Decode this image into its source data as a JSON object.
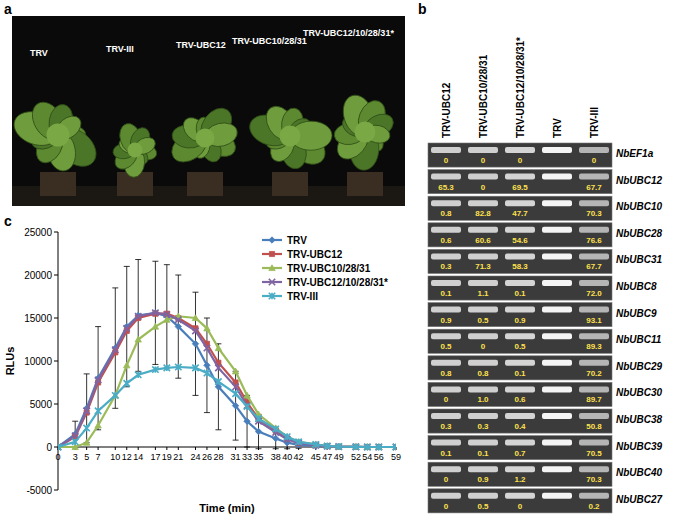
{
  "panel_labels": [
    "a",
    "b",
    "c"
  ],
  "panel_a": {
    "plants": [
      "TRV",
      "TRV-III",
      "TRV-UBC12",
      "TRV-UBC10/28/31",
      "TRV-UBC12/10/28/31*"
    ]
  },
  "panel_b": {
    "columns": [
      "TRV-UBC12",
      "TRV-UBC10/28/31",
      "TRV-UBC12/10/28/31*",
      "TRV",
      "TRV-III"
    ],
    "rows": [
      {
        "gene": "NbEF1a",
        "values": [
          "0",
          "0",
          "0",
          null,
          "0"
        ]
      },
      {
        "gene": "NbUBC12",
        "values": [
          "65.3",
          "0",
          "69.5",
          null,
          "67.7"
        ]
      },
      {
        "gene": "NbUBC10",
        "values": [
          "0.8",
          "82.8",
          "47.7",
          null,
          "70.3"
        ]
      },
      {
        "gene": "NbUBC28",
        "values": [
          "0.6",
          "60.6",
          "54.6",
          null,
          "76.6"
        ]
      },
      {
        "gene": "NbUBC31",
        "values": [
          "0.3",
          "71.3",
          "58.3",
          null,
          "67.7"
        ]
      },
      {
        "gene": "NbUBC8",
        "values": [
          "0.1",
          "1.1",
          "0.1",
          null,
          "72.0"
        ]
      },
      {
        "gene": "NbUBC9",
        "values": [
          "0.9",
          "0.5",
          "0.9",
          null,
          "93.1"
        ]
      },
      {
        "gene": "NbUBC11",
        "values": [
          "0.5",
          "0",
          "0.5",
          null,
          "89.3"
        ]
      },
      {
        "gene": "NbUBC29",
        "values": [
          "0.8",
          "0.8",
          "0.1",
          null,
          "70.2"
        ]
      },
      {
        "gene": "NbUBC30",
        "values": [
          "0",
          "1.0",
          "0.6",
          null,
          "89.7"
        ]
      },
      {
        "gene": "NbUBC38",
        "values": [
          "0.3",
          "0.3",
          "0.4",
          null,
          "50.8"
        ]
      },
      {
        "gene": "NbUBC39",
        "values": [
          "0.1",
          "0.1",
          "0.7",
          null,
          "70.5"
        ]
      },
      {
        "gene": "NbUBC40",
        "values": [
          "0",
          "0.9",
          "1.2",
          null,
          "70.3"
        ]
      },
      {
        "gene": "NbUBC27",
        "values": [
          "0",
          "0.5",
          "0",
          null,
          "0.2"
        ]
      }
    ]
  },
  "chart_data": {
    "type": "line",
    "x_label": "Time (min)",
    "y_label": "RLUs",
    "x": [
      0,
      3,
      5,
      7,
      10,
      12,
      14,
      17,
      19,
      21,
      24,
      26,
      28,
      31,
      33,
      35,
      38,
      40,
      42,
      45,
      47,
      49,
      52,
      54,
      56,
      59
    ],
    "xlim": [
      0,
      59
    ],
    "xticks": [
      0,
      3,
      5,
      7,
      10,
      12,
      14,
      17,
      19,
      21,
      24,
      26,
      28,
      31,
      33,
      35,
      38,
      40,
      42,
      45,
      47,
      49,
      52,
      54,
      56,
      59
    ],
    "ylim": [
      -5000,
      25000
    ],
    "yticks": [
      -5000,
      0,
      5000,
      10000,
      15000,
      20000,
      25000
    ],
    "grid": false,
    "legend": "upper-right",
    "series": [
      {
        "name": "TRV",
        "color": "#4a7ebb",
        "marker": "diamond",
        "values": [
          0,
          1500,
          4500,
          8000,
          11500,
          14000,
          15300,
          15600,
          15200,
          14000,
          12000,
          9500,
          7000,
          4800,
          3000,
          1800,
          1000,
          500,
          250,
          120,
          60,
          30,
          10,
          0,
          0,
          0
        ],
        "errors": [
          0,
          1500,
          4000,
          6000,
          7000,
          7000,
          6500,
          6000,
          6000,
          6000,
          6000,
          5500,
          5000,
          4000,
          3000,
          2000,
          1200,
          700,
          400,
          200,
          100,
          50,
          20,
          0,
          0,
          0
        ]
      },
      {
        "name": "TRV-UBC12",
        "color": "#c0504d",
        "marker": "square",
        "values": [
          0,
          1200,
          4000,
          7500,
          11000,
          13500,
          15000,
          15500,
          15500,
          15000,
          13800,
          12000,
          9800,
          7500,
          5200,
          3300,
          1900,
          1000,
          500,
          250,
          100,
          50,
          20,
          0,
          0,
          0
        ]
      },
      {
        "name": "TRV-UBC10/28/31",
        "color": "#9bbb59",
        "marker": "triangle",
        "values": [
          0,
          0,
          500,
          2500,
          6000,
          9500,
          12500,
          14000,
          14800,
          15200,
          15000,
          13800,
          11500,
          8800,
          6000,
          3800,
          2200,
          1200,
          600,
          300,
          120,
          50,
          20,
          0,
          0,
          0
        ]
      },
      {
        "name": "TRV-UBC12/10/28/31*",
        "color": "#8064a2",
        "marker": "x",
        "values": [
          0,
          1300,
          4200,
          7800,
          11300,
          13800,
          15200,
          15600,
          15400,
          14800,
          13500,
          11500,
          9200,
          7000,
          4800,
          3000,
          1700,
          900,
          450,
          200,
          90,
          40,
          15,
          0,
          0,
          0
        ]
      },
      {
        "name": "TRV-III",
        "color": "#4bacc6",
        "marker": "asterisk",
        "values": [
          0,
          600,
          2200,
          4200,
          6000,
          7400,
          8400,
          9000,
          9200,
          9300,
          9200,
          8600,
          7600,
          6200,
          4700,
          3300,
          2100,
          1200,
          600,
          300,
          120,
          50,
          20,
          0,
          0,
          0
        ]
      }
    ]
  }
}
